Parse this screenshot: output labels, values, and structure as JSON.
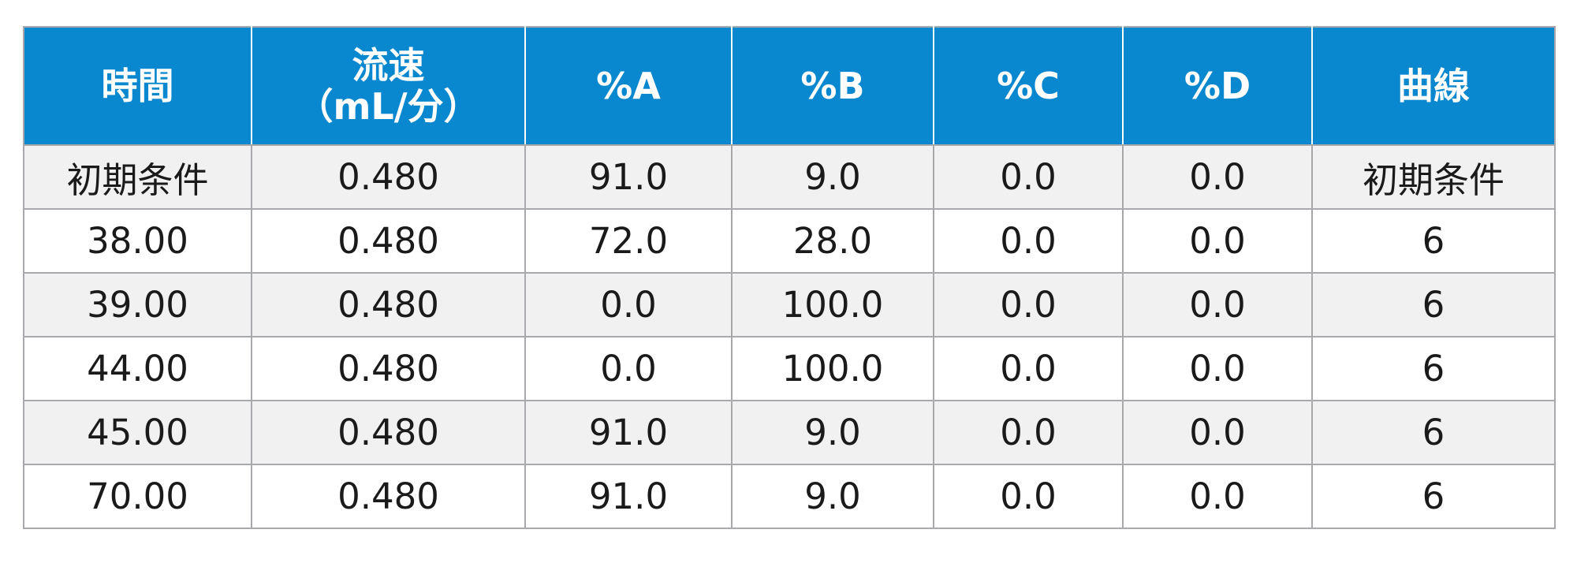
{
  "table": {
    "header_color": "#0a88cf",
    "stripe_color": "#f1f1f2",
    "columns": [
      {
        "lines": [
          "時間"
        ]
      },
      {
        "lines": [
          "流速",
          "（mL/分）"
        ]
      },
      {
        "lines": [
          "%A"
        ]
      },
      {
        "lines": [
          "%B"
        ]
      },
      {
        "lines": [
          "%C"
        ]
      },
      {
        "lines": [
          "%D"
        ]
      },
      {
        "lines": [
          "曲線"
        ]
      }
    ],
    "rows": [
      [
        "初期条件",
        "0.480",
        "91.0",
        "9.0",
        "0.0",
        "0.0",
        "初期条件"
      ],
      [
        "38.00",
        "0.480",
        "72.0",
        "28.0",
        "0.0",
        "0.0",
        "6"
      ],
      [
        "39.00",
        "0.480",
        "0.0",
        "100.0",
        "0.0",
        "0.0",
        "6"
      ],
      [
        "44.00",
        "0.480",
        "0.0",
        "100.0",
        "0.0",
        "0.0",
        "6"
      ],
      [
        "45.00",
        "0.480",
        "91.0",
        "9.0",
        "0.0",
        "0.0",
        "6"
      ],
      [
        "70.00",
        "0.480",
        "91.0",
        "9.0",
        "0.0",
        "0.0",
        "6"
      ]
    ]
  }
}
